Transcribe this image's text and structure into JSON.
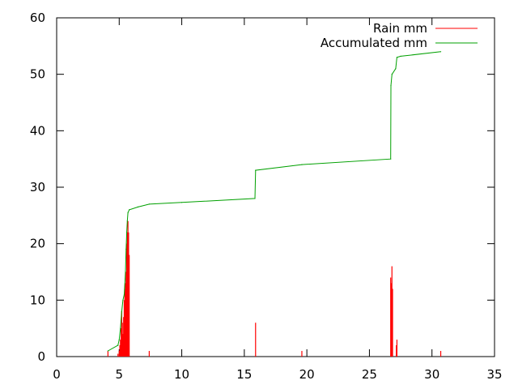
{
  "chart_data": {
    "type": "line",
    "title": "",
    "xlabel": "",
    "ylabel": "",
    "xlim": [
      0,
      35
    ],
    "ylim": [
      0,
      60
    ],
    "x_ticks": [
      0,
      5,
      10,
      15,
      20,
      25,
      30,
      35
    ],
    "y_ticks": [
      0,
      10,
      20,
      30,
      40,
      50,
      60
    ],
    "grid": false,
    "legend_position": "top-right",
    "series": [
      {
        "name": "Rain mm",
        "style": "impulses",
        "color": "#ff0000",
        "points": [
          [
            4.1,
            1
          ],
          [
            4.9,
            0.5
          ],
          [
            5.0,
            1
          ],
          [
            5.05,
            2
          ],
          [
            5.1,
            3
          ],
          [
            5.15,
            5
          ],
          [
            5.2,
            8
          ],
          [
            5.25,
            6
          ],
          [
            5.3,
            4
          ],
          [
            5.35,
            7
          ],
          [
            5.4,
            10
          ],
          [
            5.45,
            12
          ],
          [
            5.5,
            13
          ],
          [
            5.55,
            15
          ],
          [
            5.6,
            20
          ],
          [
            5.65,
            22
          ],
          [
            5.7,
            24
          ],
          [
            5.75,
            22
          ],
          [
            5.8,
            18
          ],
          [
            7.4,
            1
          ],
          [
            15.9,
            6
          ],
          [
            19.6,
            1
          ],
          [
            26.7,
            14
          ],
          [
            26.75,
            13
          ],
          [
            26.8,
            16
          ],
          [
            26.85,
            12
          ],
          [
            27.15,
            2
          ],
          [
            27.2,
            3
          ],
          [
            30.7,
            1
          ]
        ]
      },
      {
        "name": "Accumulated mm",
        "style": "line",
        "color": "#00a000",
        "points": [
          [
            4.1,
            1
          ],
          [
            4.9,
            2
          ],
          [
            5.0,
            3
          ],
          [
            5.1,
            5
          ],
          [
            5.2,
            8
          ],
          [
            5.3,
            10
          ],
          [
            5.4,
            11
          ],
          [
            5.5,
            15
          ],
          [
            5.55,
            19
          ],
          [
            5.6,
            22
          ],
          [
            5.65,
            24
          ],
          [
            5.7,
            25.5
          ],
          [
            5.8,
            26
          ],
          [
            6.5,
            26.5
          ],
          [
            7.4,
            27
          ],
          [
            10,
            27.3
          ],
          [
            15.85,
            28
          ],
          [
            15.9,
            33
          ],
          [
            19.6,
            34
          ],
          [
            26.7,
            35
          ],
          [
            26.72,
            48
          ],
          [
            26.8,
            50
          ],
          [
            27.1,
            51
          ],
          [
            27.2,
            53
          ],
          [
            27.5,
            53.2
          ],
          [
            30.7,
            54
          ]
        ]
      }
    ]
  }
}
